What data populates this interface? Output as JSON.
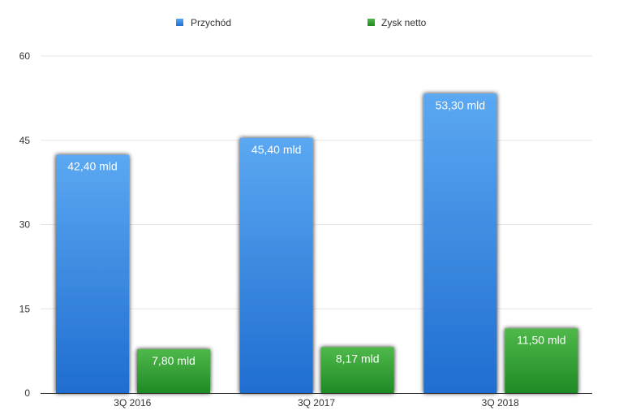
{
  "chart_data": {
    "type": "bar",
    "categories": [
      "3Q 2016",
      "3Q 2017",
      "3Q 2018"
    ],
    "series": [
      {
        "name": "Przychód",
        "values": [
          42.4,
          45.4,
          53.3
        ],
        "labels": [
          "42,40 mld",
          "45,40 mld",
          "53,30 mld"
        ],
        "color_top": "#5ba8f2",
        "color_bottom": "#1f6dd0"
      },
      {
        "name": "Zysk netto",
        "values": [
          7.8,
          8.17,
          11.5
        ],
        "labels": [
          "7,80 mld",
          "8,17 mld",
          "11,50 mld"
        ],
        "color_top": "#4fb84a",
        "color_bottom": "#1e8a24"
      }
    ],
    "yticks": [
      "0",
      "15",
      "30",
      "45",
      "60"
    ],
    "ylim": [
      0,
      60
    ],
    "grid": true,
    "legend_position": "top"
  }
}
